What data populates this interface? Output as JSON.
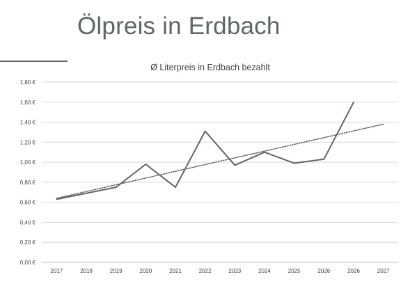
{
  "slide": {
    "title": "Ölpreis in Erdbach",
    "accent_color": "#5c6766"
  },
  "chart_data": {
    "type": "line",
    "title": "Ø Literpreis in Erdbach bezahlt",
    "xlabel": "",
    "ylabel": "",
    "categories": [
      "2017",
      "2018",
      "2019",
      "2020",
      "2021",
      "2022",
      "2023",
      "2024",
      "2025",
      "2026",
      "2026",
      "2027"
    ],
    "series": [
      {
        "color": "#5c6766",
        "values": [
          0.63,
          0.69,
          0.75,
          0.98,
          0.75,
          1.31,
          0.97,
          1.1,
          0.99,
          1.03,
          1.6,
          null
        ]
      }
    ],
    "trendline": {
      "style": "dotted",
      "color": "#595959",
      "start_value": 0.64,
      "end_value": 1.38
    },
    "ylim": [
      0,
      1.8
    ],
    "yticks": [
      "0,00 €",
      "0,20 €",
      "0,40 €",
      "0,60 €",
      "0,80 €",
      "1,00 €",
      "1,20 €",
      "1,40 €",
      "1,60 €",
      "1,80 €"
    ],
    "grid": true,
    "legend": "none"
  }
}
